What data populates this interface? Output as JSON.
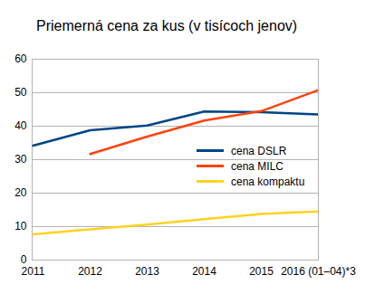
{
  "chart_data": {
    "type": "line",
    "title": "Priemerná cena za kus (v tisícoch jenov)",
    "categories": [
      "2011",
      "2012",
      "2013",
      "2014",
      "2015",
      "2016 (01–04)*3"
    ],
    "series": [
      {
        "name": "cena DSLR",
        "color": "#004586",
        "values": [
          34.2,
          38.8,
          40.2,
          44.4,
          44.2,
          43.5
        ]
      },
      {
        "name": "cena MILC",
        "color": "#ff420e",
        "values": [
          null,
          31.7,
          36.9,
          41.7,
          44.5,
          50.8
        ]
      },
      {
        "name": "cena kompaktu",
        "color": "#ffd320",
        "values": [
          7.7,
          9.2,
          10.6,
          12.2,
          13.8,
          14.5
        ]
      }
    ],
    "ylim": [
      0,
      60
    ],
    "yticks": [
      0,
      10,
      20,
      30,
      40,
      50,
      60
    ],
    "grid": true,
    "legend": "right"
  }
}
